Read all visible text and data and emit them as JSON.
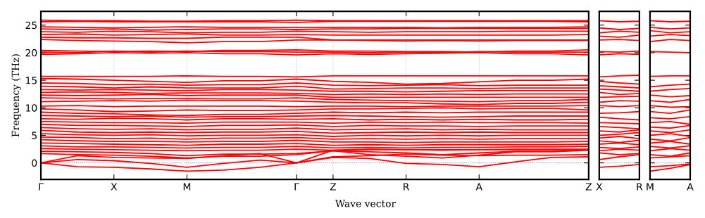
{
  "chart_data": [
    {
      "type": "line",
      "xlabel": "Wave vector",
      "ylabel": "Frequency (THz)",
      "ylim": [
        -3,
        27.5
      ],
      "categories": [
        "Γ",
        null,
        "X",
        null,
        "M",
        null,
        null,
        "Γ",
        "Z",
        null,
        "R",
        null,
        "A",
        null,
        null,
        "Z"
      ],
      "yticks": [
        0,
        5,
        10,
        15,
        20,
        25
      ],
      "grid": "x",
      "legend": false,
      "line_style": "solid",
      "ref_lines": [
        {
          "axis": "y",
          "value": 0,
          "color": "#8080ff",
          "line_style": "dotted"
        }
      ],
      "series": [
        {
          "color": "#ff0000",
          "values": [
            25.9,
            25.8,
            25.8,
            25.7,
            25.7,
            25.8,
            25.8,
            25.9,
            25.8,
            25.8,
            25.8,
            25.8,
            25.8,
            25.8,
            25.8,
            25.8
          ]
        },
        {
          "color": "#ff0000",
          "values": [
            25.6,
            25.7,
            25.6,
            25.6,
            25.6,
            25.6,
            25.6,
            25.5,
            25.7,
            25.7,
            25.7,
            25.7,
            25.7,
            25.7,
            25.7,
            25.6
          ]
        },
        {
          "color": "#ff0000",
          "values": [
            24.7,
            24.6,
            24.5,
            24.6,
            24.7,
            24.6,
            24.6,
            24.6,
            24.6,
            24.6,
            24.6,
            24.5,
            24.6,
            24.6,
            24.6,
            24.7
          ]
        },
        {
          "color": "#ff0000",
          "values": [
            24.3,
            24.2,
            24.3,
            24.1,
            24.2,
            24.3,
            24.3,
            24.2,
            24.3,
            24.3,
            24.4,
            24.4,
            24.4,
            24.4,
            24.4,
            24.4
          ]
        },
        {
          "color": "#ff0000",
          "values": [
            23.8,
            23.7,
            23.9,
            23.8,
            23.6,
            23.7,
            23.7,
            23.9,
            23.8,
            23.7,
            23.8,
            23.8,
            23.8,
            23.9,
            23.9,
            23.9
          ]
        },
        {
          "color": "#ff0000",
          "values": [
            23.3,
            23.4,
            23.2,
            23.3,
            23.4,
            23.2,
            23.2,
            23.3,
            23.2,
            23.2,
            23.2,
            23.2,
            23.2,
            23.2,
            23.2,
            23.3
          ]
        },
        {
          "color": "#ff0000",
          "values": [
            22.8,
            22.7,
            22.7,
            22.6,
            22.6,
            22.8,
            22.8,
            22.8,
            22.3,
            22.3,
            22.3,
            22.3,
            22.3,
            22.3,
            22.3,
            22.3
          ]
        },
        {
          "color": "#ff0000",
          "values": [
            22.4,
            22.2,
            22.1,
            22.0,
            21.8,
            22.0,
            22.0,
            22.3,
            22.3,
            22.2,
            22.1,
            22.2,
            22.1,
            22.2,
            22.2,
            22.2
          ]
        },
        {
          "color": "#ff0000",
          "values": [
            20.4,
            20.3,
            20.2,
            20.3,
            20.2,
            20.4,
            20.4,
            20.5,
            20.3,
            20.3,
            20.2,
            20.2,
            20.1,
            20.3,
            20.3,
            20.5
          ]
        },
        {
          "color": "#ff0000",
          "values": [
            20.1,
            20.0,
            20.3,
            20.1,
            20.3,
            20.2,
            20.2,
            20.1,
            20.1,
            20.0,
            20.1,
            20.0,
            20.2,
            20.1,
            20.1,
            20.1
          ]
        },
        {
          "color": "#ff0000",
          "values": [
            19.7,
            19.8,
            20.0,
            19.9,
            20.0,
            19.8,
            19.8,
            19.6,
            19.8,
            19.7,
            19.8,
            19.9,
            20.0,
            19.8,
            19.8,
            19.6
          ]
        },
        {
          "color": "#ff0000",
          "values": [
            15.7,
            15.7,
            15.7,
            15.7,
            15.8,
            15.7,
            15.7,
            15.6,
            15.8,
            15.8,
            15.8,
            15.8,
            15.8,
            15.8,
            15.8,
            15.8
          ]
        },
        {
          "color": "#ff0000",
          "values": [
            15.3,
            15.2,
            15.0,
            14.8,
            14.6,
            14.9,
            14.9,
            15.2,
            14.8,
            14.6,
            14.3,
            14.4,
            14.7,
            15.0,
            15.0,
            15.2
          ]
        },
        {
          "color": "#ff0000",
          "values": [
            14.5,
            14.4,
            14.2,
            14.3,
            14.1,
            14.2,
            14.2,
            14.5,
            14.1,
            14.0,
            14.1,
            14.2,
            14.0,
            14.1,
            14.1,
            14.1
          ]
        },
        {
          "color": "#ff0000",
          "values": [
            13.9,
            13.8,
            13.6,
            13.8,
            13.6,
            13.6,
            13.6,
            13.9,
            13.4,
            13.5,
            13.6,
            13.6,
            13.5,
            13.6,
            13.6,
            13.6
          ]
        },
        {
          "color": "#ff0000",
          "values": [
            13.3,
            13.2,
            13.3,
            13.2,
            13.1,
            13.3,
            13.3,
            13.2,
            13.0,
            13.0,
            12.9,
            13.0,
            13.1,
            13.1,
            13.1,
            13.1
          ]
        },
        {
          "color": "#ff0000",
          "values": [
            12.8,
            12.9,
            12.8,
            12.6,
            12.7,
            12.7,
            12.7,
            12.6,
            12.4,
            12.5,
            12.4,
            12.5,
            12.4,
            12.5,
            12.5,
            12.5
          ]
        },
        {
          "color": "#ff0000",
          "values": [
            12.3,
            12.2,
            12.3,
            12.4,
            12.2,
            12.3,
            12.3,
            12.3,
            11.9,
            11.9,
            11.9,
            11.9,
            11.9,
            11.9,
            11.9,
            11.9
          ]
        },
        {
          "color": "#ff0000",
          "values": [
            11.8,
            11.7,
            11.6,
            11.7,
            11.7,
            11.6,
            11.6,
            11.8,
            11.5,
            11.4,
            11.3,
            11.2,
            11.1,
            11.3,
            11.3,
            11.5
          ]
        },
        {
          "color": "#ff0000",
          "values": [
            11.1,
            11.2,
            11.3,
            11.2,
            11.4,
            11.3,
            11.3,
            11.2,
            11.0,
            10.9,
            10.9,
            10.7,
            10.6,
            10.8,
            10.8,
            11.0
          ]
        },
        {
          "color": "#ff0000",
          "values": [
            10.3,
            10.4,
            10.2,
            10.3,
            10.3,
            10.3,
            10.3,
            10.2,
            10.3,
            10.3,
            10.2,
            10.3,
            10.3,
            10.3,
            10.3,
            10.4
          ]
        },
        {
          "color": "#ff0000",
          "values": [
            9.8,
            9.6,
            9.3,
            9.4,
            9.6,
            9.5,
            9.5,
            9.6,
            9.8,
            9.8,
            9.9,
            10.0,
            9.8,
            9.9,
            9.9,
            9.6
          ]
        },
        {
          "color": "#ff0000",
          "values": [
            9.2,
            9.0,
            8.9,
            8.7,
            8.6,
            8.8,
            8.8,
            9.0,
            9.2,
            9.1,
            9.2,
            9.1,
            9.2,
            9.2,
            9.2,
            9.2
          ]
        },
        {
          "color": "#ff0000",
          "values": [
            8.6,
            8.5,
            8.4,
            8.5,
            8.3,
            8.4,
            8.4,
            8.5,
            8.6,
            8.5,
            8.4,
            8.3,
            8.4,
            8.5,
            8.5,
            8.5
          ]
        },
        {
          "color": "#ff0000",
          "values": [
            8.0,
            7.9,
            8.1,
            8.0,
            7.8,
            8.0,
            8.0,
            7.9,
            8.0,
            7.8,
            7.9,
            7.8,
            7.9,
            7.8,
            7.8,
            7.9
          ]
        },
        {
          "color": "#ff0000",
          "values": [
            7.5,
            7.4,
            7.3,
            7.3,
            7.2,
            7.4,
            7.4,
            7.4,
            7.2,
            7.4,
            7.3,
            7.4,
            7.3,
            7.3,
            7.3,
            7.2
          ]
        },
        {
          "color": "#ff0000",
          "values": [
            7.0,
            6.8,
            6.8,
            6.7,
            6.6,
            6.8,
            6.8,
            6.9,
            6.6,
            6.8,
            6.7,
            6.7,
            6.6,
            6.7,
            6.7,
            6.7
          ]
        },
        {
          "color": "#ff0000",
          "values": [
            6.4,
            6.2,
            6.1,
            6.2,
            6.0,
            6.1,
            6.1,
            6.3,
            6.0,
            6.1,
            6.2,
            6.0,
            6.1,
            6.0,
            6.0,
            6.0
          ]
        },
        {
          "color": "#ff0000",
          "values": [
            5.9,
            5.6,
            5.5,
            5.6,
            5.5,
            5.6,
            5.6,
            5.7,
            5.4,
            5.5,
            5.6,
            5.5,
            5.6,
            5.5,
            5.5,
            5.5
          ]
        },
        {
          "color": "#ff0000",
          "values": [
            5.3,
            5.1,
            5.0,
            5.1,
            4.9,
            5.0,
            5.0,
            5.1,
            4.8,
            5.0,
            4.9,
            5.0,
            4.9,
            5.0,
            5.0,
            5.0
          ]
        },
        {
          "color": "#ff0000",
          "values": [
            4.7,
            4.6,
            4.4,
            4.5,
            4.3,
            4.5,
            4.5,
            4.6,
            4.3,
            4.4,
            4.3,
            4.4,
            4.3,
            4.4,
            4.4,
            4.4
          ]
        },
        {
          "color": "#ff0000",
          "values": [
            4.2,
            4.0,
            3.9,
            3.9,
            3.8,
            3.9,
            3.9,
            4.1,
            3.8,
            3.8,
            3.7,
            3.8,
            3.8,
            3.8,
            3.8,
            3.9
          ]
        },
        {
          "color": "#ff0000",
          "values": [
            3.6,
            3.5,
            3.4,
            3.3,
            3.2,
            3.4,
            3.4,
            3.5,
            3.2,
            3.3,
            3.2,
            3.3,
            3.3,
            3.3,
            3.3,
            3.4
          ]
        },
        {
          "color": "#ff0000",
          "values": [
            3.1,
            2.9,
            2.9,
            2.8,
            2.7,
            2.8,
            2.8,
            3.0,
            2.7,
            2.8,
            2.7,
            2.8,
            2.8,
            2.9,
            2.9,
            3.0
          ]
        },
        {
          "color": "#ff0000",
          "values": [
            2.6,
            2.5,
            2.4,
            2.3,
            2.2,
            2.3,
            2.3,
            2.5,
            2.3,
            2.5,
            2.4,
            2.3,
            2.4,
            2.5,
            2.5,
            2.5
          ]
        },
        {
          "color": "#ff0000",
          "values": [
            2.1,
            2.0,
            1.9,
            1.7,
            1.3,
            1.6,
            1.6,
            1.7,
            2.2,
            2.0,
            1.8,
            1.5,
            1.8,
            2.1,
            2.1,
            2.4
          ]
        },
        {
          "color": "#ff0000",
          "values": [
            1.7,
            1.5,
            1.4,
            1.2,
            0.9,
            1.2,
            1.2,
            1.5,
            2.2,
            1.5,
            1.2,
            0.9,
            1.4,
            2.0,
            2.0,
            2.3
          ]
        },
        {
          "color": "#ff0000",
          "values": [
            0,
            -0.7,
            -0.8,
            -1.1,
            -1.5,
            -1.3,
            -0.8,
            0,
            1.0,
            0.8,
            -0.1,
            -0.3,
            -0.7,
            0.2,
            1.0,
            1.1
          ]
        },
        {
          "color": "#ff0000",
          "values": [
            0,
            0.6,
            0.4,
            -0.1,
            -0.8,
            -0.1,
            0.5,
            0,
            2.3,
            2.4,
            2.4,
            2.4,
            2.4,
            2.4,
            2.4,
            2.4
          ]
        },
        {
          "color": "#ff0000",
          "values": [
            0,
            1.3,
            1.0,
            0.9,
            0.8,
            1.3,
            1.7,
            0,
            1.1,
            1.3,
            1.6,
            1.4,
            1.3,
            1.4,
            1.4,
            1.5
          ]
        }
      ]
    },
    {
      "type": "line",
      "ylim": [
        -3,
        27.5
      ],
      "categories": [
        "X",
        null,
        "R"
      ],
      "yticks": [
        0,
        5,
        10,
        15,
        20,
        25
      ],
      "tick_labels": "x",
      "legend": false,
      "line_style": "solid",
      "ref_lines": [
        {
          "axis": "y",
          "value": 0,
          "color": "#8080ff",
          "line_style": "dotted"
        }
      ],
      "series": [
        {
          "color": "#ff0000",
          "values": [
            -0.8,
            -0.6,
            -0.3
          ]
        },
        {
          "color": "#ff0000",
          "values": [
            0.6,
            1.1,
            1.5
          ]
        },
        {
          "color": "#ff0000",
          "values": [
            1.8,
            1.5,
            1.7
          ]
        },
        {
          "color": "#ff0000",
          "values": [
            2.2,
            2.5,
            2.3
          ]
        },
        {
          "color": "#ff0000",
          "values": [
            2.8,
            2.6,
            2.9
          ]
        },
        {
          "color": "#ff0000",
          "values": [
            3.4,
            3.6,
            3.3
          ]
        },
        {
          "color": "#ff0000",
          "values": [
            4.0,
            3.7,
            4.1
          ]
        },
        {
          "color": "#ff0000",
          "values": [
            4.5,
            4.8,
            4.4
          ]
        },
        {
          "color": "#ff0000",
          "values": [
            5.0,
            5.2,
            5.5
          ]
        },
        {
          "color": "#ff0000",
          "values": [
            5.8,
            5.6,
            6.0
          ]
        },
        {
          "color": "#ff0000",
          "values": [
            6.6,
            6.4,
            6.2
          ]
        },
        {
          "color": "#ff0000",
          "values": [
            7.3,
            7.2,
            7.1
          ]
        },
        {
          "color": "#ff0000",
          "values": [
            8.3,
            8.0,
            7.8
          ]
        },
        {
          "color": "#ff0000",
          "values": [
            9.0,
            9.1,
            9.3
          ]
        },
        {
          "color": "#ff0000",
          "values": [
            10.4,
            10.2,
            10.4
          ]
        },
        {
          "color": "#ff0000",
          "values": [
            11.0,
            11.3,
            11.2
          ]
        },
        {
          "color": "#ff0000",
          "values": [
            11.9,
            12.0,
            12.1
          ]
        },
        {
          "color": "#ff0000",
          "values": [
            12.8,
            12.4,
            12.6
          ]
        },
        {
          "color": "#ff0000",
          "values": [
            13.4,
            13.2,
            13.0
          ]
        },
        {
          "color": "#ff0000",
          "values": [
            14.0,
            13.8,
            13.6
          ]
        },
        {
          "color": "#ff0000",
          "values": [
            14.8,
            14.5,
            14.3
          ]
        },
        {
          "color": "#ff0000",
          "values": [
            15.6,
            15.8,
            15.9
          ]
        },
        {
          "color": "#ff0000",
          "values": [
            19.6,
            19.8,
            19.7
          ]
        },
        {
          "color": "#ff0000",
          "values": [
            20.2,
            20.1,
            20.3
          ]
        },
        {
          "color": "#ff0000",
          "values": [
            22.3,
            22.4,
            22.2
          ]
        },
        {
          "color": "#ff0000",
          "values": [
            23.0,
            22.8,
            23.2
          ]
        },
        {
          "color": "#ff0000",
          "values": [
            23.6,
            23.9,
            23.7
          ]
        },
        {
          "color": "#ff0000",
          "values": [
            24.5,
            24.2,
            24.4
          ]
        },
        {
          "color": "#ff0000",
          "values": [
            25.8,
            25.6,
            25.7
          ]
        }
      ]
    },
    {
      "type": "line",
      "ylim": [
        -3,
        27.5
      ],
      "categories": [
        "M",
        null,
        "A"
      ],
      "yticks": [
        0,
        5,
        10,
        15,
        20,
        25
      ],
      "tick_labels": "x",
      "legend": false,
      "line_style": "solid",
      "ref_lines": [
        {
          "axis": "y",
          "value": 0,
          "color": "#8080ff",
          "line_style": "dotted"
        }
      ],
      "series": [
        {
          "color": "#ff0000",
          "values": [
            -1.5,
            -1.0,
            -0.3
          ]
        },
        {
          "color": "#ff0000",
          "values": [
            -0.7,
            -0.5,
            -0.2
          ]
        },
        {
          "color": "#ff0000",
          "values": [
            0.9,
            1.1,
            1.3
          ]
        },
        {
          "color": "#ff0000",
          "values": [
            1.5,
            1.2,
            1.8
          ]
        },
        {
          "color": "#ff0000",
          "values": [
            2.2,
            2.6,
            2.3
          ]
        },
        {
          "color": "#ff0000",
          "values": [
            3.0,
            2.7,
            3.1
          ]
        },
        {
          "color": "#ff0000",
          "values": [
            3.6,
            3.9,
            3.4
          ]
        },
        {
          "color": "#ff0000",
          "values": [
            4.3,
            4.0,
            4.6
          ]
        },
        {
          "color": "#ff0000",
          "values": [
            5.0,
            5.3,
            4.8
          ]
        },
        {
          "color": "#ff0000",
          "values": [
            5.8,
            5.5,
            6.0
          ]
        },
        {
          "color": "#ff0000",
          "values": [
            6.5,
            6.3,
            6.8
          ]
        },
        {
          "color": "#ff0000",
          "values": [
            7.3,
            7.5,
            7.0
          ]
        },
        {
          "color": "#ff0000",
          "values": [
            8.2,
            8.0,
            8.4
          ]
        },
        {
          "color": "#ff0000",
          "values": [
            9.3,
            9.0,
            9.6
          ]
        },
        {
          "color": "#ff0000",
          "values": [
            10.4,
            10.1,
            10.2
          ]
        },
        {
          "color": "#ff0000",
          "values": [
            11.3,
            11.0,
            11.5
          ]
        },
        {
          "color": "#ff0000",
          "values": [
            12.3,
            12.0,
            12.2
          ]
        },
        {
          "color": "#ff0000",
          "values": [
            13.0,
            13.3,
            13.5
          ]
        },
        {
          "color": "#ff0000",
          "values": [
            13.8,
            14.1,
            14.3
          ]
        },
        {
          "color": "#ff0000",
          "values": [
            15.7,
            15.8,
            15.8
          ]
        },
        {
          "color": "#ff0000",
          "values": [
            20.2,
            20.1,
            20.0
          ]
        },
        {
          "color": "#ff0000",
          "values": [
            22.0,
            22.4,
            22.2
          ]
        },
        {
          "color": "#ff0000",
          "values": [
            23.0,
            23.3,
            23.1
          ]
        },
        {
          "color": "#ff0000",
          "values": [
            24.0,
            23.6,
            23.8
          ]
        },
        {
          "color": "#ff0000",
          "values": [
            24.6,
            24.3,
            24.5
          ]
        },
        {
          "color": "#ff0000",
          "values": [
            25.8,
            25.6,
            25.7
          ]
        }
      ]
    }
  ]
}
